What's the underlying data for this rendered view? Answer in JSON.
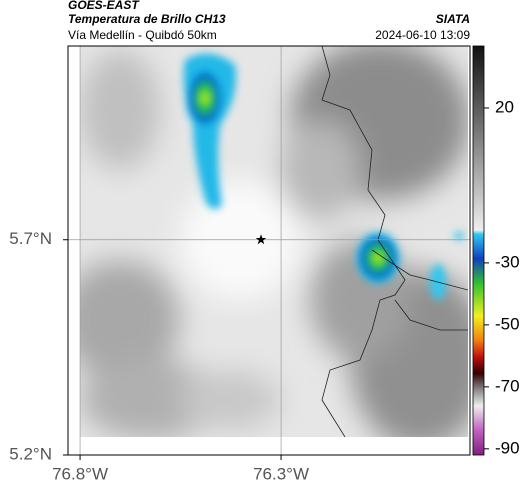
{
  "header": {
    "satellite": "GOES-EAST",
    "product": "Temperatura de Brillo CH13",
    "agency": "SIATA",
    "route": "Vía Medellín - Quibdó 50km",
    "timestamp": "2024-06-10 13:09"
  },
  "map": {
    "xlim": [
      -76.83,
      -75.83
    ],
    "ylim": [
      5.2,
      6.15
    ],
    "xticks": [
      {
        "value": -76.8,
        "label": "76.8°W"
      },
      {
        "value": -76.3,
        "label": "76.3°W"
      }
    ],
    "yticks": [
      {
        "value": 5.2,
        "label": "5.2°N"
      },
      {
        "value": 5.7,
        "label": "5.7°N"
      }
    ],
    "grid": true,
    "marker": {
      "lon": -76.35,
      "lat": 5.7
    }
  },
  "colorbar": {
    "clim": [
      -92,
      40
    ],
    "ticks": [
      20,
      -30,
      -50,
      -70,
      -90
    ]
  }
}
